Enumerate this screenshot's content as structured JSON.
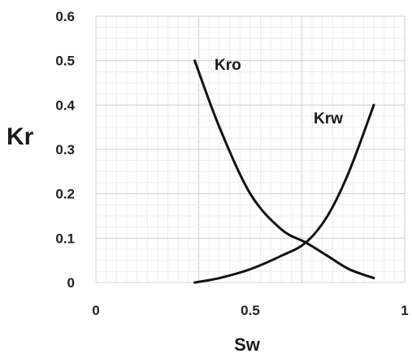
{
  "chart_data": {
    "type": "line",
    "title": "",
    "xlabel": "Sw",
    "ylabel": "Kr",
    "xlim": [
      0,
      1
    ],
    "ylim": [
      0,
      0.6
    ],
    "x_ticks": [
      0,
      0.5,
      1
    ],
    "x_tick_labels": [
      "0",
      "0.5",
      "1"
    ],
    "y_ticks": [
      0,
      0.1,
      0.2,
      0.3,
      0.4,
      0.5,
      0.6
    ],
    "y_tick_labels": [
      "0",
      "0.1",
      "0.2",
      "0.3",
      "0.4",
      "0.5",
      "0.6"
    ],
    "grid": true,
    "series": [
      {
        "name": "Kro",
        "x": [
          0.32,
          0.4,
          0.5,
          0.6,
          0.68,
          0.75,
          0.82,
          0.9
        ],
        "y": [
          0.5,
          0.35,
          0.2,
          0.12,
          0.09,
          0.06,
          0.03,
          0.01
        ]
      },
      {
        "name": "Krw",
        "x": [
          0.32,
          0.4,
          0.5,
          0.6,
          0.68,
          0.75,
          0.82,
          0.9
        ],
        "y": [
          0.0,
          0.01,
          0.03,
          0.06,
          0.09,
          0.15,
          0.25,
          0.4
        ]
      }
    ]
  }
}
